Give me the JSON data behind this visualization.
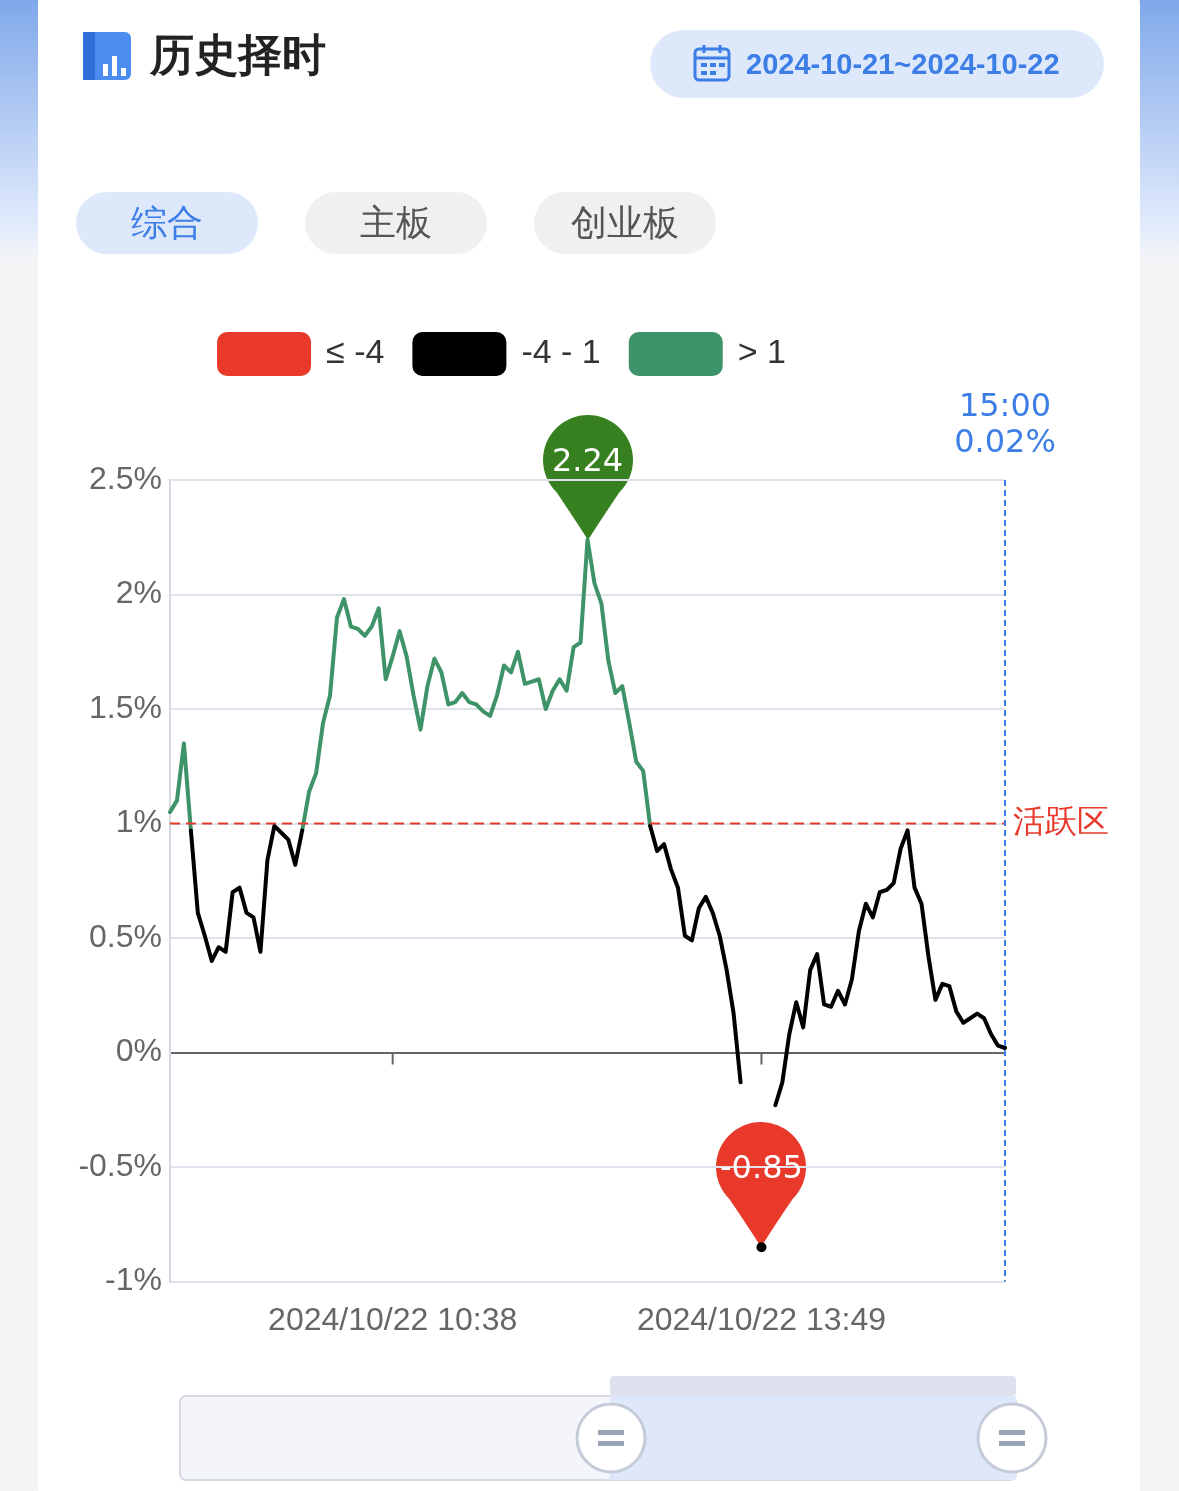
{
  "chart_data": {
    "type": "line",
    "title": "历史择时",
    "subtitle": "2024-10-21~2024-10-22",
    "categories": [
      null,
      null,
      null,
      null,
      null,
      null,
      null,
      null,
      null,
      null,
      null,
      null,
      null,
      null,
      null,
      null,
      null,
      null,
      null,
      null,
      null,
      null,
      null,
      null,
      null,
      null,
      null,
      null,
      null,
      null,
      null,
      null,
      "2024/10/22 10:38",
      null,
      null,
      null,
      null,
      null,
      null,
      null,
      null,
      null,
      null,
      null,
      null,
      null,
      null,
      null,
      null,
      null,
      null,
      null,
      null,
      null,
      null,
      null,
      null,
      null,
      null,
      null,
      null,
      null,
      null,
      null,
      null,
      null,
      null,
      null,
      null,
      null,
      null,
      null,
      null,
      null,
      null,
      null,
      null,
      null,
      null,
      null,
      null,
      null,
      null,
      null,
      null,
      "2024/10/22 13:49",
      null,
      null,
      null,
      null,
      null,
      null,
      null,
      null,
      null,
      null,
      null,
      null,
      null,
      null,
      null,
      null,
      null,
      null,
      null,
      null,
      null,
      null,
      null,
      null,
      null,
      null,
      null,
      null,
      null,
      null,
      null,
      null,
      null,
      null,
      null
    ],
    "series": [
      {
        "name": "≤ -4",
        "color": "#e8392b",
        "values": [
          null,
          null,
          null,
          null,
          null,
          null,
          null,
          null,
          null,
          null,
          null,
          null,
          null,
          null,
          null,
          null,
          null,
          null,
          null,
          null,
          null,
          null,
          null,
          null,
          null,
          null,
          null,
          null,
          null,
          null,
          null,
          null,
          null,
          null,
          null,
          null,
          null,
          null,
          null,
          null,
          null,
          null,
          null,
          null,
          null,
          null,
          null,
          null,
          null,
          null,
          null,
          null,
          null,
          null,
          null,
          null,
          null,
          null,
          null,
          null,
          null,
          null,
          null,
          null,
          null,
          null,
          null,
          null,
          null,
          null,
          null,
          null,
          null,
          null,
          null,
          null,
          null,
          null,
          null,
          null,
          null,
          null,
          null,
          null,
          null,
          null,
          null,
          null,
          null,
          null,
          null,
          null,
          null,
          null,
          null,
          null,
          null,
          null,
          null,
          null,
          null,
          null,
          null,
          null,
          null,
          null,
          null,
          null,
          null,
          null,
          null,
          null,
          null,
          null,
          null,
          null,
          null,
          null,
          null,
          null,
          null
        ]
      },
      {
        "name": "-4 - 1",
        "color": "#000000",
        "values": [
          null,
          null,
          null,
          0.97,
          0.61,
          0.51,
          0.4,
          0.46,
          0.44,
          0.7,
          0.72,
          0.61,
          0.59,
          0.44,
          0.84,
          0.99,
          0.96,
          0.93,
          0.82,
          0.97,
          null,
          null,
          null,
          null,
          null,
          null,
          null,
          null,
          null,
          null,
          null,
          null,
          null,
          null,
          null,
          null,
          null,
          null,
          null,
          null,
          null,
          null,
          null,
          null,
          null,
          null,
          null,
          null,
          null,
          null,
          null,
          null,
          null,
          null,
          null,
          null,
          null,
          null,
          null,
          null,
          null,
          null,
          null,
          null,
          null,
          null,
          null,
          null,
          null,
          0.99,
          0.88,
          0.91,
          0.8,
          0.72,
          0.51,
          0.49,
          0.63,
          0.68,
          0.61,
          0.51,
          0.36,
          0.17,
          -0.13,
          null,
          null,
          -0.85,
          null,
          -0.23,
          -0.13,
          0.08,
          0.22,
          0.11,
          0.36,
          0.43,
          0.21,
          0.2,
          0.27,
          0.21,
          0.32,
          0.53,
          0.65,
          0.59,
          0.7,
          0.71,
          0.74,
          0.89,
          0.97,
          0.72,
          0.65,
          0.42,
          0.23,
          0.3,
          0.29,
          0.18,
          0.13,
          0.15,
          0.17,
          0.15,
          0.08,
          0.03,
          0.02
        ]
      },
      {
        "name": "> 1",
        "color": "#3f9369",
        "values": [
          1.05,
          1.1,
          1.35,
          0.97,
          null,
          null,
          null,
          null,
          null,
          null,
          null,
          null,
          null,
          null,
          null,
          null,
          null,
          null,
          null,
          0.97,
          1.14,
          1.22,
          1.44,
          1.56,
          1.9,
          1.98,
          1.86,
          1.85,
          1.82,
          1.86,
          1.94,
          1.63,
          1.73,
          1.84,
          1.73,
          1.56,
          1.41,
          1.6,
          1.72,
          1.66,
          1.52,
          1.53,
          1.57,
          1.53,
          1.52,
          1.49,
          1.47,
          1.56,
          1.69,
          1.66,
          1.75,
          1.61,
          1.62,
          1.63,
          1.5,
          1.58,
          1.63,
          1.58,
          1.77,
          1.79,
          2.24,
          2.05,
          1.96,
          1.71,
          1.57,
          1.6,
          1.44,
          1.27,
          1.23,
          0.99,
          null,
          null,
          null,
          null,
          null,
          null,
          null,
          null,
          null,
          null,
          null,
          null,
          null,
          null,
          null,
          null,
          null,
          null,
          null,
          null,
          null,
          null,
          null,
          null,
          null,
          null,
          null,
          null,
          null,
          null,
          null,
          null,
          null,
          null,
          null,
          null,
          null,
          null,
          null,
          null,
          null,
          null,
          null,
          null,
          null,
          null,
          null,
          null,
          null,
          null,
          null
        ]
      }
    ],
    "ylim": [
      -1,
      2.5
    ],
    "yticks": [
      {
        "value": -1,
        "label": "-1%"
      },
      {
        "value": -0.5,
        "label": "-0.5%"
      },
      {
        "value": 0,
        "label": "0%"
      },
      {
        "value": 0.5,
        "label": "0.5%"
      },
      {
        "value": 1,
        "label": "1%"
      },
      {
        "value": 1.5,
        "label": "1.5%"
      },
      {
        "value": 2,
        "label": "2%"
      },
      {
        "value": 2.5,
        "label": "2.5%"
      }
    ],
    "ref_lines": [
      {
        "axis": "y",
        "value": 1,
        "label": "活跃区",
        "color": "#e8392b",
        "line_style": "dashed"
      }
    ],
    "annotations": [
      "综合",
      "主板",
      "创业板",
      {
        "text": "2.24",
        "y": 2.24
      },
      {
        "text": "-0.85",
        "y": -0.85
      },
      "15:00\n0.02%"
    ],
    "grid": "y",
    "legend": "top",
    "marker": "none",
    "line_style": "solid"
  }
}
